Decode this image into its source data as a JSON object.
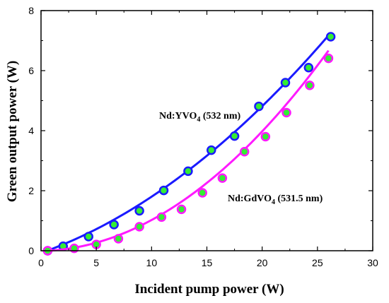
{
  "chart_data": {
    "type": "scatter",
    "xlabel": "Incident pump power (W)",
    "ylabel": "Green output power (W)",
    "xlim": [
      0,
      30
    ],
    "ylim": [
      0,
      8
    ],
    "x_ticks": [
      0,
      5,
      10,
      15,
      20,
      25,
      30
    ],
    "y_ticks": [
      0,
      2,
      4,
      6,
      8
    ],
    "x_tick_labels": [
      "0",
      "5",
      "10",
      "15",
      "20",
      "25",
      "30"
    ],
    "y_tick_labels": [
      "0",
      "2",
      "4",
      "6",
      "8"
    ],
    "grid": false,
    "series": [
      {
        "name": "Nd:YVO4 (532 nm)",
        "label_main": "Nd:YVO",
        "label_sub": "4",
        "label_rest": " (532 nm)",
        "line_color": "#1a1aff",
        "marker_fill": "#33ee33",
        "marker_edge": "#1a1aff",
        "x": [
          0.6,
          2.0,
          4.3,
          6.6,
          8.9,
          11.1,
          13.3,
          15.4,
          17.5,
          19.7,
          22.1,
          24.2,
          26.2
        ],
        "y": [
          0.0,
          0.15,
          0.47,
          0.87,
          1.33,
          2.01,
          2.65,
          3.35,
          3.82,
          4.81,
          5.6,
          6.1,
          7.13
        ],
        "fit": {
          "x0": 0.6,
          "c": [
            -0.0748,
            0.1305,
            0.0057
          ]
        }
      },
      {
        "name": "Nd:GdVO4 (531.5 nm)",
        "label_main": "Nd:GdVO",
        "label_sub": "4",
        "label_rest": " (531.5 nm)",
        "line_color": "#ff1aff",
        "marker_fill": "#33ee33",
        "marker_edge": "#ff1aff",
        "x": [
          0.6,
          3.0,
          5.0,
          7.0,
          8.9,
          10.9,
          12.7,
          14.6,
          16.4,
          18.4,
          20.3,
          22.2,
          24.3,
          26.0
        ],
        "y": [
          0.0,
          0.08,
          0.21,
          0.4,
          0.8,
          1.12,
          1.38,
          1.93,
          2.42,
          3.3,
          3.8,
          4.6,
          5.51,
          6.41
        ],
        "fit": {
          "x0": 0.6,
          "c": [
            -0.0082,
            0.0072,
            0.0096
          ]
        }
      }
    ]
  }
}
